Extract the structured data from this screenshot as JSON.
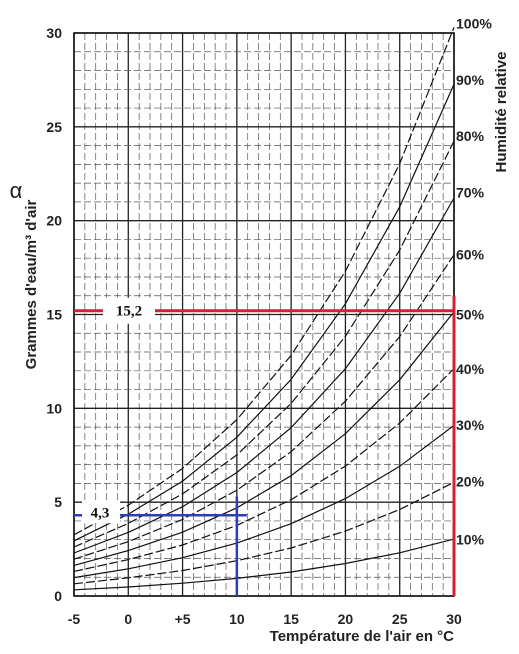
{
  "chart_data": {
    "type": "line",
    "title": "",
    "xlabel": "Température de l'air en °C",
    "ylabel_symbol": "α",
    "ylabel": "Grammes d'eau/m³ d'air",
    "y2label": "Humidité relative",
    "xlim": [
      -5,
      30
    ],
    "ylim": [
      0,
      30
    ],
    "x_ticks": [
      "-5",
      "0",
      "+5",
      "10",
      "15",
      "20",
      "25",
      "30"
    ],
    "y_ticks": [
      "0",
      "5",
      "10",
      "15",
      "20",
      "25",
      "30"
    ],
    "grid": true,
    "series": [
      {
        "name": "10%",
        "x": [
          -5,
          0,
          5,
          10,
          15,
          20,
          25,
          30
        ],
        "y": [
          0.33,
          0.48,
          0.68,
          0.94,
          1.28,
          1.73,
          2.3,
          3.03
        ]
      },
      {
        "name": "20%",
        "x": [
          -5,
          0,
          5,
          10,
          15,
          20,
          25,
          30
        ],
        "y": [
          0.65,
          0.97,
          1.36,
          1.88,
          2.56,
          3.46,
          4.61,
          6.06
        ]
      },
      {
        "name": "30%",
        "x": [
          -5,
          0,
          5,
          10,
          15,
          20,
          25,
          30
        ],
        "y": [
          0.98,
          1.45,
          2.04,
          2.82,
          3.85,
          5.19,
          6.91,
          9.09
        ]
      },
      {
        "name": "40%",
        "x": [
          -5,
          0,
          5,
          10,
          15,
          20,
          25,
          30
        ],
        "y": [
          1.31,
          1.94,
          2.72,
          3.76,
          5.13,
          6.92,
          9.22,
          12.12
        ]
      },
      {
        "name": "50%",
        "x": [
          -5,
          0,
          5,
          10,
          15,
          20,
          25,
          30
        ],
        "y": [
          1.63,
          2.42,
          3.4,
          4.7,
          6.41,
          8.65,
          11.52,
          15.15
        ]
      },
      {
        "name": "60%",
        "x": [
          -5,
          0,
          5,
          10,
          15,
          20,
          25,
          30
        ],
        "y": [
          1.96,
          2.9,
          4.08,
          5.64,
          7.69,
          10.38,
          13.82,
          18.18
        ]
      },
      {
        "name": "70%",
        "x": [
          -5,
          0,
          5,
          10,
          15,
          20,
          25,
          30
        ],
        "y": [
          2.29,
          3.39,
          4.76,
          6.58,
          8.97,
          12.11,
          16.13,
          21.21
        ]
      },
      {
        "name": "80%",
        "x": [
          -5,
          0,
          5,
          10,
          15,
          20,
          25,
          30
        ],
        "y": [
          2.61,
          3.87,
          5.44,
          7.52,
          10.26,
          13.84,
          18.43,
          24.24
        ]
      },
      {
        "name": "90%",
        "x": [
          -5,
          0,
          5,
          10,
          15,
          20,
          25,
          30
        ],
        "y": [
          2.94,
          4.36,
          6.12,
          8.46,
          11.54,
          15.57,
          20.74,
          27.27
        ]
      },
      {
        "name": "100%",
        "x": [
          -5,
          0,
          5,
          10,
          15,
          20,
          25,
          30
        ],
        "y": [
          3.26,
          4.84,
          6.8,
          9.4,
          12.82,
          17.3,
          23.04,
          30.3
        ]
      }
    ],
    "rh_labels": [
      "100%",
      "90%",
      "80%",
      "70%",
      "60%",
      "50%",
      "40%",
      "30%",
      "20%",
      "10%"
    ],
    "rh_label_y": [
      30.5,
      27.5,
      24.5,
      21.5,
      18.2,
      15.0,
      12.1,
      9.1,
      6.1,
      3.0
    ],
    "annotations": [
      {
        "text": "15,2",
        "color": "#d42030",
        "y_value": 15.2,
        "x_start": -5,
        "x_end": 30
      },
      {
        "text": "4,3",
        "color": "#2e3fb4",
        "y_value": 4.3,
        "x_start": -5,
        "x_end": 10,
        "x_value": 10
      }
    ],
    "red_bracket": {
      "color": "#d42030",
      "x_value": 30,
      "y_from": 0,
      "y_to": 16
    }
  }
}
